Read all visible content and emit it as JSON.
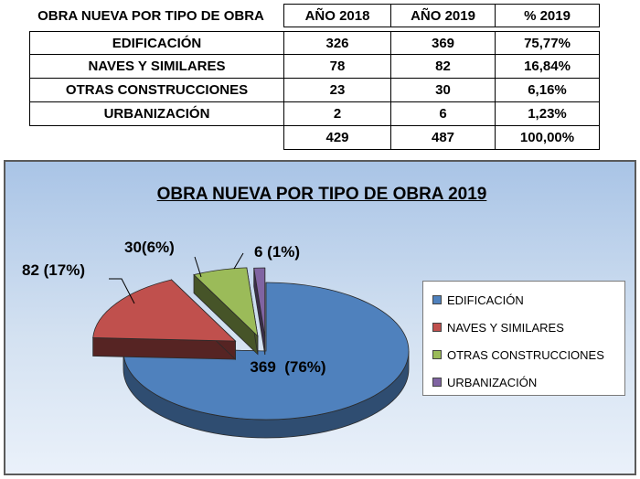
{
  "table": {
    "headers": [
      "OBRA NUEVA POR TIPO DE OBRA",
      "AÑO 2018",
      "AÑO 2019",
      "% 2019"
    ],
    "rows": [
      [
        "EDIFICACIÓN",
        "326",
        "369",
        "75,77%"
      ],
      [
        "NAVES Y SIMILARES",
        "78",
        "82",
        "16,84%"
      ],
      [
        "OTRAS CONSTRUCCIONES",
        "23",
        "30",
        "6,16%"
      ],
      [
        "URBANIZACIÓN",
        "2",
        "6",
        "1,23%"
      ]
    ],
    "totals": [
      "",
      "429",
      "487",
      "100,00%"
    ]
  },
  "chart_data": {
    "type": "pie",
    "title": "OBRA NUEVA POR TIPO DE OBRA 2019",
    "categories": [
      "EDIFICACIÓN",
      "NAVES Y SIMILARES",
      "OTRAS CONSTRUCCIONES",
      "URBANIZACIÓN"
    ],
    "values": [
      369,
      82,
      30,
      6
    ],
    "data_labels": [
      "369  (76%)",
      "82 (17%)",
      "30(6%)",
      "6 (1%)"
    ],
    "colors": [
      "#4f81bd",
      "#c0504d",
      "#9bbb59",
      "#8064a2"
    ],
    "legend_position": "right",
    "style": "3d-exploded"
  }
}
